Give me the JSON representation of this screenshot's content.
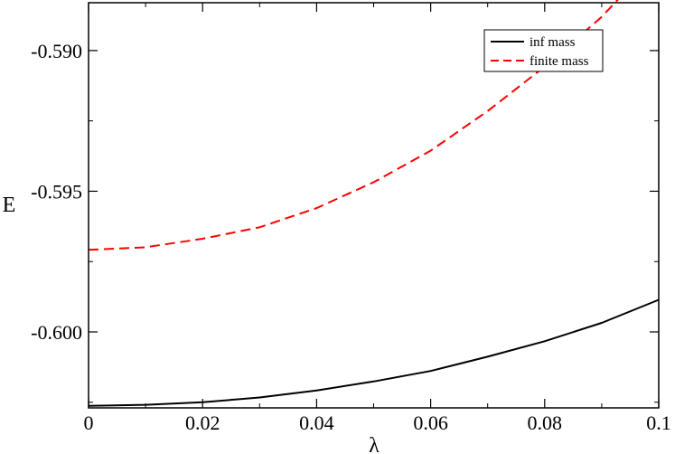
{
  "chart_data": {
    "type": "line",
    "title": "",
    "xlabel": "λ",
    "ylabel": "E",
    "xlim": [
      0,
      0.1
    ],
    "ylim": [
      -0.6027,
      -0.5883
    ],
    "xticks": [
      0,
      0.02,
      0.04,
      0.06,
      0.08,
      0.1
    ],
    "xtick_labels": [
      "0",
      "0.02",
      "0.04",
      "0.06",
      "0.08",
      "0.1"
    ],
    "yticks": [
      -0.6,
      -0.595,
      -0.59
    ],
    "ytick_labels": [
      "-0.600",
      "-0.595",
      "-0.590"
    ],
    "grid": false,
    "legend_position": "top-right",
    "series": [
      {
        "name": "inf mass",
        "color": "#000000",
        "dash": "solid",
        "x": [
          0,
          0.01,
          0.02,
          0.03,
          0.04,
          0.05,
          0.06,
          0.07,
          0.08,
          0.09,
          0.1
        ],
        "y": [
          -0.60263,
          -0.60259,
          -0.6025,
          -0.60233,
          -0.60208,
          -0.60176,
          -0.60139,
          -0.60088,
          -0.60033,
          -0.59968,
          -0.59886
        ]
      },
      {
        "name": "finite mass",
        "color": "#ff0000",
        "dash": "dashed",
        "x": [
          0,
          0.01,
          0.02,
          0.03,
          0.04,
          0.05,
          0.06,
          0.07,
          0.08,
          0.09,
          0.1
        ],
        "y": [
          -0.59708,
          -0.59699,
          -0.59669,
          -0.59628,
          -0.5956,
          -0.59468,
          -0.59356,
          -0.59215,
          -0.59057,
          -0.5888,
          -0.58664
        ]
      }
    ]
  }
}
